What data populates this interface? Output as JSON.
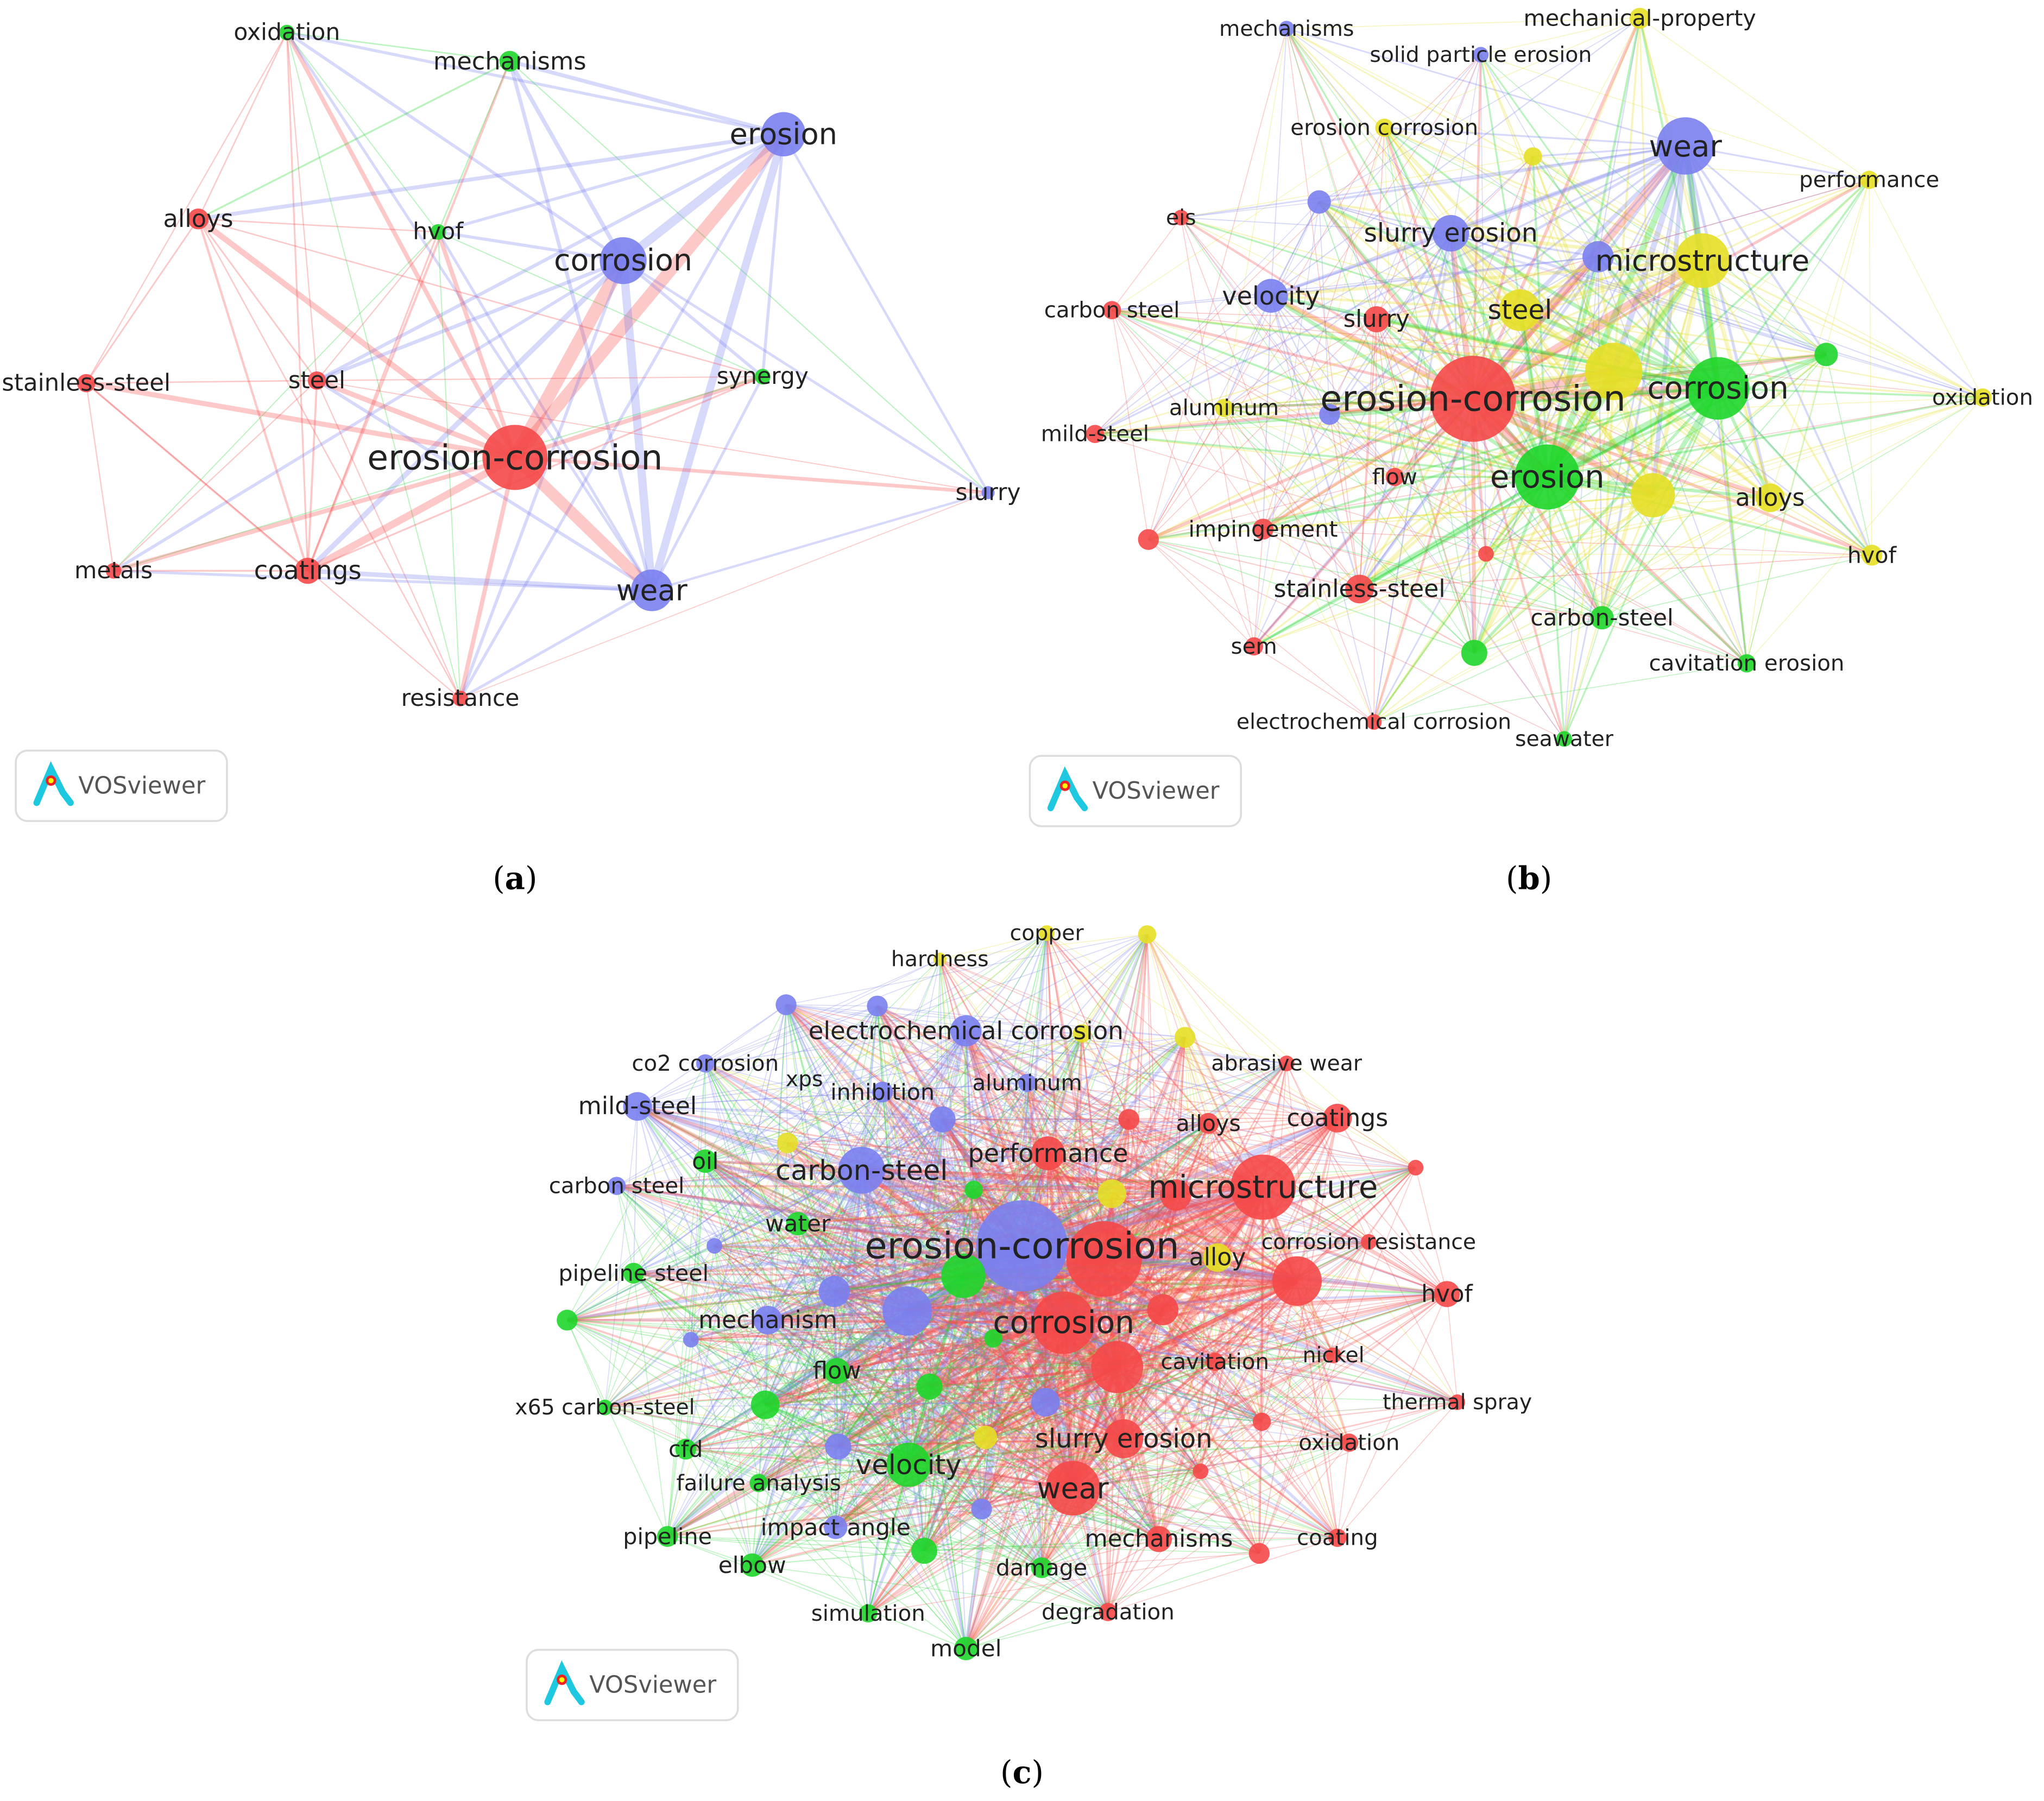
{
  "clusters": {
    "red": "#f54848",
    "green": "#1ed62a",
    "blue": "#7a80f0",
    "yellow": "#e6df26"
  },
  "panels": [
    {
      "caption": "a",
      "logo_text": "VOSviewer",
      "nodes": [
        {
          "label": "oxidation",
          "cluster": "green"
        },
        {
          "label": "mechanisms",
          "cluster": "green"
        },
        {
          "label": "erosion",
          "cluster": "blue"
        },
        {
          "label": "alloys",
          "cluster": "red"
        },
        {
          "label": "hvof",
          "cluster": "green"
        },
        {
          "label": "corrosion",
          "cluster": "blue"
        },
        {
          "label": "stainless-steel",
          "cluster": "red"
        },
        {
          "label": "steel",
          "cluster": "red"
        },
        {
          "label": "synergy",
          "cluster": "green"
        },
        {
          "label": "erosion-corrosion",
          "cluster": "red"
        },
        {
          "label": "slurry",
          "cluster": "blue"
        },
        {
          "label": "metals",
          "cluster": "red"
        },
        {
          "label": "coatings",
          "cluster": "red"
        },
        {
          "label": "wear",
          "cluster": "blue"
        },
        {
          "label": "resistance",
          "cluster": "red"
        }
      ]
    },
    {
      "caption": "b",
      "logo_text": "VOSviewer",
      "nodes": [
        {
          "label": "mechanisms",
          "cluster": "blue"
        },
        {
          "label": "solid particle erosion",
          "cluster": "blue"
        },
        {
          "label": "mechanical-property",
          "cluster": "yellow"
        },
        {
          "label": "erosion corrosion",
          "cluster": "yellow"
        },
        {
          "label": "",
          "cluster": "yellow"
        },
        {
          "label": "wear",
          "cluster": "blue"
        },
        {
          "label": "performance",
          "cluster": "yellow"
        },
        {
          "label": "eis",
          "cluster": "red"
        },
        {
          "label": "",
          "cluster": "blue"
        },
        {
          "label": "slurry erosion",
          "cluster": "blue"
        },
        {
          "label": "",
          "cluster": "blue"
        },
        {
          "label": "microstructure",
          "cluster": "yellow"
        },
        {
          "label": "velocity",
          "cluster": "blue"
        },
        {
          "label": "carbon steel",
          "cluster": "red"
        },
        {
          "label": "slurry",
          "cluster": "red"
        },
        {
          "label": "steel",
          "cluster": "yellow"
        },
        {
          "label": "",
          "cluster": "green"
        },
        {
          "label": "",
          "cluster": "yellow"
        },
        {
          "label": "erosion-corrosion",
          "cluster": "red"
        },
        {
          "label": "",
          "cluster": "blue"
        },
        {
          "label": "aluminum",
          "cluster": "yellow"
        },
        {
          "label": "corrosion",
          "cluster": "green"
        },
        {
          "label": "oxidation",
          "cluster": "yellow"
        },
        {
          "label": "mild-steel",
          "cluster": "red"
        },
        {
          "label": "flow",
          "cluster": "red"
        },
        {
          "label": "erosion",
          "cluster": "green"
        },
        {
          "label": "",
          "cluster": "yellow"
        },
        {
          "label": "alloys",
          "cluster": "yellow"
        },
        {
          "label": "impingement",
          "cluster": "red"
        },
        {
          "label": "",
          "cluster": "red"
        },
        {
          "label": "",
          "cluster": "red"
        },
        {
          "label": "hvof",
          "cluster": "yellow"
        },
        {
          "label": "stainless-steel",
          "cluster": "red"
        },
        {
          "label": "carbon-steel",
          "cluster": "green"
        },
        {
          "label": "sem",
          "cluster": "red"
        },
        {
          "label": "",
          "cluster": "green"
        },
        {
          "label": "cavitation erosion",
          "cluster": "green"
        },
        {
          "label": "electrochemical corrosion",
          "cluster": "red"
        },
        {
          "label": "seawater",
          "cluster": "green"
        }
      ]
    },
    {
      "caption": "c",
      "logo_text": "VOSviewer",
      "nodes": [
        {
          "label": "copper",
          "cluster": "yellow"
        },
        {
          "label": "",
          "cluster": "yellow"
        },
        {
          "label": "hardness",
          "cluster": "yellow"
        },
        {
          "label": "",
          "cluster": "blue"
        },
        {
          "label": "",
          "cluster": "blue"
        },
        {
          "label": "electrochemical corrosion",
          "cluster": "blue"
        },
        {
          "label": "",
          "cluster": "yellow"
        },
        {
          "label": "",
          "cluster": "yellow"
        },
        {
          "label": "abrasive wear",
          "cluster": "red"
        },
        {
          "label": "co2 corrosion",
          "cluster": "blue"
        },
        {
          "label": "xps",
          "cluster": "blue"
        },
        {
          "label": "inhibition",
          "cluster": "blue"
        },
        {
          "label": "aluminum",
          "cluster": "blue"
        },
        {
          "label": "",
          "cluster": "blue"
        },
        {
          "label": "mild-steel",
          "cluster": "blue"
        },
        {
          "label": "",
          "cluster": "red"
        },
        {
          "label": "alloys",
          "cluster": "red"
        },
        {
          "label": "coatings",
          "cluster": "red"
        },
        {
          "label": "",
          "cluster": "yellow"
        },
        {
          "label": "oil",
          "cluster": "green"
        },
        {
          "label": "performance",
          "cluster": "red"
        },
        {
          "label": "carbon-steel",
          "cluster": "blue"
        },
        {
          "label": "carbon steel",
          "cluster": "blue"
        },
        {
          "label": "",
          "cluster": "green"
        },
        {
          "label": "",
          "cluster": "yellow"
        },
        {
          "label": "",
          "cluster": "red"
        },
        {
          "label": "microstructure",
          "cluster": "red"
        },
        {
          "label": "",
          "cluster": "red"
        },
        {
          "label": "water",
          "cluster": "green"
        },
        {
          "label": "",
          "cluster": "blue"
        },
        {
          "label": "",
          "cluster": "red"
        },
        {
          "label": "erosion-corrosion",
          "cluster": "blue"
        },
        {
          "label": "",
          "cluster": "green"
        },
        {
          "label": "alloy",
          "cluster": "yellow"
        },
        {
          "label": "corrosion resistance",
          "cluster": "red"
        },
        {
          "label": "pipeline steel",
          "cluster": "green"
        },
        {
          "label": "",
          "cluster": "blue"
        },
        {
          "label": "",
          "cluster": "red"
        },
        {
          "label": "hvof",
          "cluster": "red"
        },
        {
          "label": "",
          "cluster": "green"
        },
        {
          "label": "mechanism",
          "cluster": "blue"
        },
        {
          "label": "",
          "cluster": "blue"
        },
        {
          "label": "",
          "cluster": "red"
        },
        {
          "label": "",
          "cluster": "blue"
        },
        {
          "label": "",
          "cluster": "green"
        },
        {
          "label": "corrosion",
          "cluster": "red"
        },
        {
          "label": "",
          "cluster": "red"
        },
        {
          "label": "cavitation",
          "cluster": "red"
        },
        {
          "label": "nickel",
          "cluster": "red"
        },
        {
          "label": "flow",
          "cluster": "green"
        },
        {
          "label": "",
          "cluster": "green"
        },
        {
          "label": "",
          "cluster": "blue"
        },
        {
          "label": "x65 carbon-steel",
          "cluster": "green"
        },
        {
          "label": "",
          "cluster": "green"
        },
        {
          "label": "thermal spray",
          "cluster": "red"
        },
        {
          "label": "",
          "cluster": "red"
        },
        {
          "label": "oxidation",
          "cluster": "red"
        },
        {
          "label": "",
          "cluster": "yellow"
        },
        {
          "label": "cfd",
          "cluster": "green"
        },
        {
          "label": "",
          "cluster": "blue"
        },
        {
          "label": "slurry erosion",
          "cluster": "red"
        },
        {
          "label": "velocity",
          "cluster": "green"
        },
        {
          "label": "",
          "cluster": "red"
        },
        {
          "label": "failure analysis",
          "cluster": "green"
        },
        {
          "label": "wear",
          "cluster": "red"
        },
        {
          "label": "",
          "cluster": "blue"
        },
        {
          "label": "impact angle",
          "cluster": "blue"
        },
        {
          "label": "pipeline",
          "cluster": "green"
        },
        {
          "label": "",
          "cluster": "green"
        },
        {
          "label": "mechanisms",
          "cluster": "red"
        },
        {
          "label": "",
          "cluster": "red"
        },
        {
          "label": "coating",
          "cluster": "red"
        },
        {
          "label": "elbow",
          "cluster": "green"
        },
        {
          "label": "damage",
          "cluster": "green"
        },
        {
          "label": "simulation",
          "cluster": "green"
        },
        {
          "label": "degradation",
          "cluster": "red"
        },
        {
          "label": "model",
          "cluster": "green"
        }
      ]
    }
  ]
}
